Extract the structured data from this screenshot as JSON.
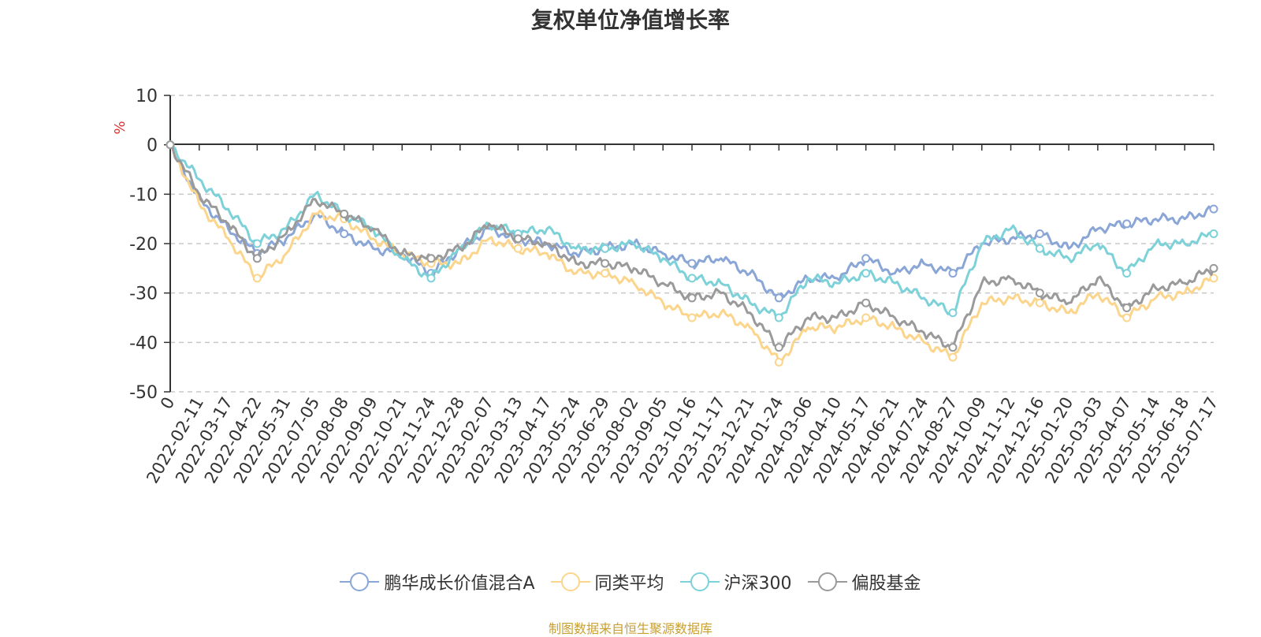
{
  "chart_data": {
    "type": "line",
    "title": "复权单位净值增长率",
    "ylabel": "%",
    "ylim": [
      -50,
      10
    ],
    "yticks": [
      10,
      0,
      -10,
      -20,
      -30,
      -40,
      -50
    ],
    "x_tick_labels": [
      "0",
      "2022-02-11",
      "2022-03-17",
      "2022-04-22",
      "2022-05-31",
      "2022-07-05",
      "2022-08-08",
      "2022-09-09",
      "2022-10-21",
      "2022-11-24",
      "2022-12-28",
      "2023-02-07",
      "2023-03-13",
      "2023-04-17",
      "2023-05-24",
      "2023-06-29",
      "2023-08-02",
      "2023-09-05",
      "2023-10-16",
      "2023-11-17",
      "2023-12-21",
      "2024-01-24",
      "2024-03-06",
      "2024-04-10",
      "2024-05-17",
      "2024-06-21",
      "2024-07-24",
      "2024-08-27",
      "2024-10-09",
      "2024-11-12",
      "2024-12-16",
      "2025-01-20",
      "2025-03-03",
      "2025-04-07",
      "2025-05-14",
      "2025-06-18",
      "2025-07-17"
    ],
    "grid": true,
    "legend_position": "bottom",
    "series": [
      {
        "name": "鹏华成长价值混合A",
        "color": "#8aa6d6",
        "values": [
          0,
          -11,
          -17,
          -22,
          -19,
          -14,
          -18,
          -21,
          -22,
          -26,
          -21,
          -17,
          -19,
          -20,
          -22,
          -21,
          -20,
          -22,
          -24,
          -23,
          -26,
          -31,
          -27,
          -27,
          -23,
          -26,
          -24,
          -26,
          -20,
          -19,
          -18,
          -21,
          -17,
          -16,
          -15,
          -15,
          -13
        ]
      },
      {
        "name": "同类平均",
        "color": "#fbd58c",
        "values": [
          0,
          -12,
          -19,
          -27,
          -22,
          -14,
          -15,
          -19,
          -22,
          -24,
          -24,
          -19,
          -21,
          -22,
          -26,
          -26,
          -28,
          -32,
          -35,
          -34,
          -37,
          -44,
          -37,
          -37,
          -35,
          -37,
          -40,
          -43,
          -32,
          -31,
          -32,
          -34,
          -30,
          -35,
          -31,
          -30,
          -27
        ]
      },
      {
        "name": "沪深300",
        "color": "#7dd1d8",
        "values": [
          0,
          -7,
          -13,
          -20,
          -17,
          -10,
          -14,
          -17,
          -23,
          -27,
          -21,
          -16,
          -18,
          -17,
          -21,
          -21,
          -20,
          -23,
          -27,
          -28,
          -32,
          -35,
          -27,
          -28,
          -26,
          -28,
          -31,
          -34,
          -20,
          -17,
          -21,
          -23,
          -20,
          -26,
          -20,
          -20,
          -18
        ]
      },
      {
        "name": "偏股基金",
        "color": "#9a9a9a",
        "values": [
          0,
          -10,
          -16,
          -23,
          -18,
          -11,
          -14,
          -17,
          -22,
          -23,
          -21,
          -16,
          -19,
          -20,
          -24,
          -24,
          -25,
          -28,
          -31,
          -30,
          -34,
          -41,
          -35,
          -35,
          -32,
          -35,
          -38,
          -41,
          -28,
          -27,
          -30,
          -32,
          -27,
          -33,
          -29,
          -28,
          -25
        ]
      }
    ]
  },
  "source_note": "制图数据来自恒生聚源数据库"
}
